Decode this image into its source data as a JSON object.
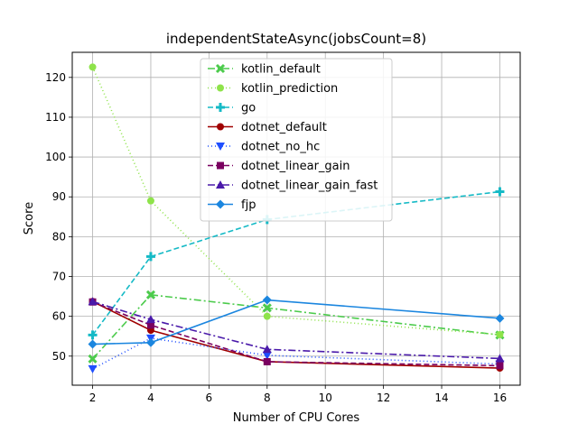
{
  "chart_data": {
    "type": "line",
    "title": "independentStateAsync(jobsCount=8)",
    "xlabel": "Number of CPU Cores",
    "ylabel": "Score",
    "xlim": [
      1.3,
      16.7
    ],
    "ylim": [
      42.7,
      126.3
    ],
    "xticks": [
      2,
      4,
      6,
      8,
      10,
      12,
      14,
      16
    ],
    "yticks": [
      50,
      60,
      70,
      80,
      90,
      100,
      110,
      120
    ],
    "grid": true,
    "legend_position": "upper-center",
    "x": [
      2,
      4,
      8,
      16
    ],
    "series": [
      {
        "name": "kotlin_default",
        "values": [
          49.3,
          65.4,
          62.1,
          55.3
        ],
        "color": "#4ccb4c",
        "dash": "8,3,2,3",
        "marker": "x-filled"
      },
      {
        "name": "kotlin_prediction",
        "values": [
          122.6,
          89.0,
          60.0,
          55.4
        ],
        "color": "#8ee34a",
        "dash": "1,3",
        "marker": "circle"
      },
      {
        "name": "go",
        "values": [
          55.3,
          75.0,
          84.3,
          91.3
        ],
        "color": "#15bac6",
        "dash": "6,3",
        "marker": "plus-filled"
      },
      {
        "name": "dotnet_default",
        "values": [
          63.7,
          56.5,
          48.6,
          47.0
        ],
        "color": "#a00000",
        "dash": "",
        "marker": "circle"
      },
      {
        "name": "dotnet_no_hc",
        "values": [
          46.8,
          54.5,
          50.2,
          48.0
        ],
        "color": "#1f4fff",
        "dash": "1,3",
        "marker": "triangle-down"
      },
      {
        "name": "dotnet_linear_gain",
        "values": [
          63.6,
          57.8,
          48.6,
          47.6
        ],
        "color": "#7a0060",
        "dash": "6,3",
        "marker": "square"
      },
      {
        "name": "dotnet_linear_gain_fast",
        "values": [
          63.7,
          59.2,
          51.7,
          49.4
        ],
        "color": "#4a1aaa",
        "dash": "8,3,2,3",
        "marker": "triangle-up"
      },
      {
        "name": "fjp",
        "values": [
          53.0,
          53.4,
          64.1,
          59.5
        ],
        "color": "#1b86df",
        "dash": "",
        "marker": "diamond"
      }
    ]
  }
}
